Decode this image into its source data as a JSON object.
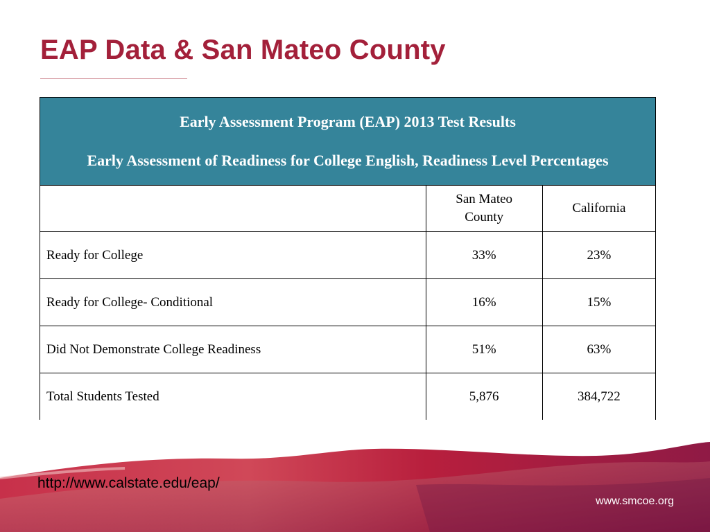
{
  "slide": {
    "title": "EAP Data & San Mateo County",
    "source_link": "http://www.calstate.edu/eap/",
    "footer_url": "www.smcoe.org",
    "colors": {
      "title": "#a3203a",
      "table_header_bg": "#35849a",
      "wave": "#c0283f"
    }
  },
  "table": {
    "header_line1": "Early Assessment Program (EAP) 2013 Test Results",
    "header_line2": "Early Assessment of Readiness for College English, Readiness Level Percentages",
    "columns": [
      "",
      "San Mateo County",
      "California"
    ],
    "rows": [
      {
        "label": "Ready for College",
        "san_mateo": "33%",
        "california": "23%"
      },
      {
        "label": "Ready for College- Conditional",
        "san_mateo": "16%",
        "california": "15%"
      },
      {
        "label": "Did Not Demonstrate College Readiness",
        "san_mateo": "51%",
        "california": "63%"
      },
      {
        "label": "Total Students Tested",
        "san_mateo": "5,876",
        "california": "384,722"
      }
    ]
  }
}
